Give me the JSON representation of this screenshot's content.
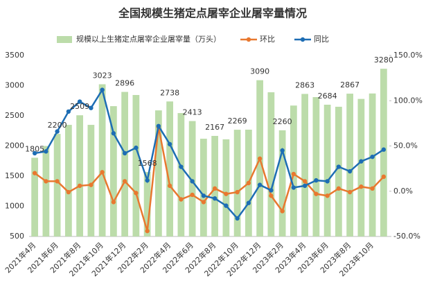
{
  "chart_data": {
    "type": "bar-line",
    "title": "全国规模生猪定点屠宰企业屠宰量情况",
    "categories": [
      "2021年4月",
      null,
      "2021年6月",
      null,
      "2021年8月",
      null,
      "2021年10月",
      null,
      "2021年12月",
      null,
      "2022年2月",
      null,
      "2022年4月",
      null,
      "2022年6月",
      null,
      "2022年8月",
      null,
      "2022年10月",
      null,
      "2022年12月",
      null,
      "2023年2月",
      null,
      "2023年4月",
      null,
      "2023年6月",
      null,
      "2023年8月",
      null,
      "2023年10月",
      null
    ],
    "series": [
      {
        "name": "规模以上生猪定点屠宰企业屠宰量（万头）",
        "type": "bar",
        "color": "#bcdcaa",
        "values": [
          1805,
          2000,
          2200,
          2350,
          2509,
          2350,
          3023,
          2660,
          2896,
          2845,
          1568,
          2590,
          2738,
          2545,
          2413,
          2120,
          2167,
          2110,
          2269,
          2270,
          3090,
          2890,
          2260,
          2670,
          2863,
          2810,
          2684,
          2650,
          2867,
          2780,
          2870,
          3280
        ],
        "value_labels": [
          "1805",
          null,
          "2200",
          null,
          "2509",
          null,
          "3023",
          null,
          "2896",
          null,
          "1568",
          null,
          "2738",
          null,
          "2413",
          null,
          "2167",
          null,
          "2269",
          null,
          "3090",
          null,
          "2260",
          null,
          "2863",
          null,
          "2684",
          null,
          "2867",
          null,
          null,
          "3280"
        ]
      },
      {
        "name": "环比",
        "type": "line",
        "axis": "y2",
        "color": "#e8782f",
        "values": [
          20,
          11,
          11,
          -1,
          6,
          7,
          21,
          -12,
          11,
          -2,
          -44,
          71,
          6,
          -9,
          -4,
          -12,
          3,
          -3,
          -1,
          9,
          36,
          -5,
          -22,
          19,
          11,
          -3,
          -5,
          3,
          -1,
          5,
          3,
          16
        ]
      },
      {
        "name": "同比",
        "type": "line",
        "axis": "y2",
        "color": "#1d6db4",
        "values": [
          42,
          44,
          66,
          88,
          99,
          92,
          112,
          64,
          42,
          48,
          12,
          72,
          52,
          27,
          11,
          -5,
          -8,
          -16,
          -30,
          -13,
          7,
          1,
          45,
          4,
          6,
          12,
          11,
          27,
          22,
          33,
          38,
          46
        ]
      }
    ],
    "ylim": [
      500,
      3500
    ],
    "yticks": [
      500,
      1000,
      1500,
      2000,
      2500,
      3000,
      3500
    ],
    "y2lim": [
      -50,
      150
    ],
    "y2ticks": [
      {
        "value": -50,
        "label": "-50.0%"
      },
      {
        "value": 0,
        "label": "0.0%"
      },
      {
        "value": 50,
        "label": "50.0%"
      },
      {
        "value": 100,
        "label": "100.0%"
      },
      {
        "value": 150,
        "label": "150.0%"
      }
    ],
    "grid": false,
    "legend": "top"
  }
}
